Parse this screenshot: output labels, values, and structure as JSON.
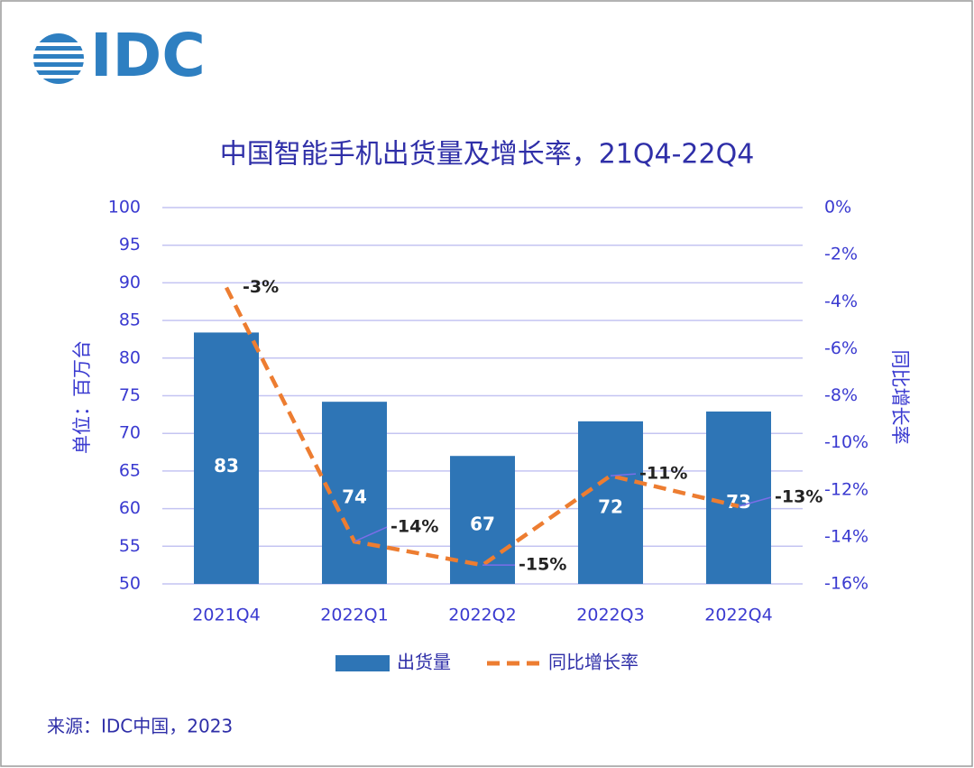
{
  "logo": "IDC",
  "source": "来源：IDC中国，2023",
  "chart_data": {
    "type": "bar-line",
    "title": "中国智能手机出货量及增长率，21Q4-22Q4",
    "y_label": "单位：百万台",
    "y2_label": "同比增长率",
    "categories": [
      "2021Q4",
      "2022Q1",
      "2022Q2",
      "2022Q3",
      "2022Q4"
    ],
    "ylim": [
      50,
      100
    ],
    "yticks": [
      50,
      55,
      60,
      65,
      70,
      75,
      80,
      85,
      90,
      95,
      100
    ],
    "y2lim": [
      -16,
      0
    ],
    "y2ticks": [
      {
        "value": -16,
        "label": "-16%"
      },
      {
        "value": -14,
        "label": "-14%"
      },
      {
        "value": -12,
        "label": "-12%"
      },
      {
        "value": -10,
        "label": "-10%"
      },
      {
        "value": -8,
        "label": "-8%"
      },
      {
        "value": -6,
        "label": "-6%"
      },
      {
        "value": -4,
        "label": "-4%"
      },
      {
        "value": -2,
        "label": "-2%"
      },
      {
        "value": 0,
        "label": "0%"
      }
    ],
    "grid": true,
    "series": [
      {
        "name": "出货量",
        "type": "bar",
        "color": "#2e75b6",
        "values": [
          83.4,
          74.2,
          67.0,
          71.6,
          72.9
        ],
        "value_labels": [
          "83",
          "74",
          "67",
          "72",
          "73"
        ]
      },
      {
        "name": "同比增长率",
        "type": "line",
        "axis": "y2",
        "color": "#ed7d31",
        "values": [
          -3.4,
          -14.2,
          -15.2,
          -11.4,
          -12.7
        ],
        "value_labels": [
          "-3%",
          "-14%",
          "-15%",
          "-11%",
          "-13%"
        ]
      }
    ]
  }
}
